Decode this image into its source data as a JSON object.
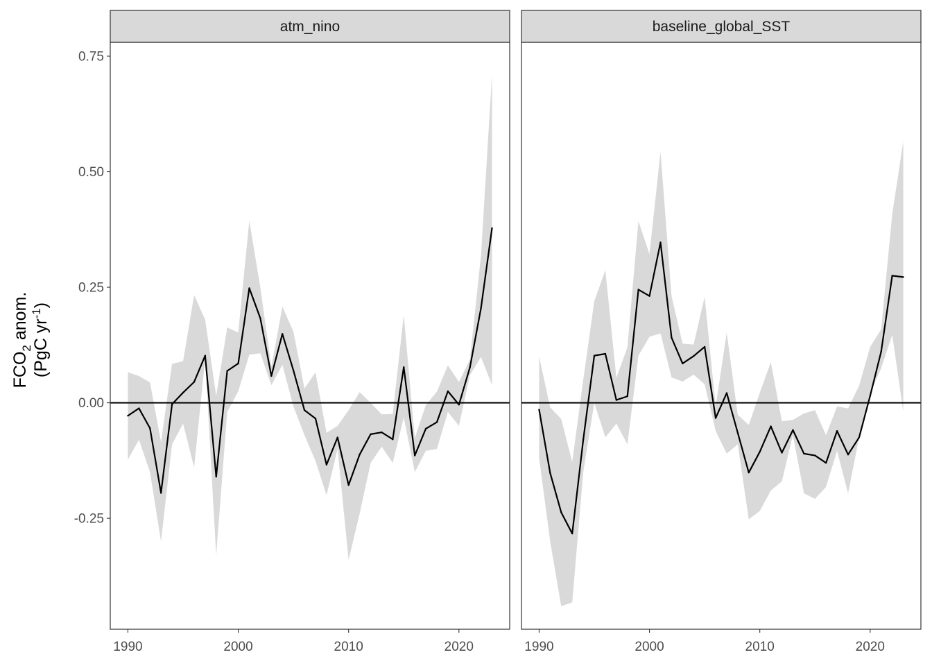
{
  "chart_data": {
    "type": "line",
    "ylabel": {
      "line1": {
        "main": "FCO",
        "sub": "2",
        "rest": " anom."
      },
      "line2": {
        "pre": "(PgC yr",
        "sup": "-1",
        "post": ")"
      }
    },
    "xlim": [
      1988.4,
      2024.6
    ],
    "ylim": [
      -0.49,
      0.78
    ],
    "x_ticks": [
      1990,
      2000,
      2010,
      2020
    ],
    "x_tick_labels": [
      "1990",
      "2000",
      "2010",
      "2020"
    ],
    "y_ticks": [
      -0.25,
      0,
      0.25,
      0.5,
      0.75
    ],
    "y_tick_labels": [
      "-0.25",
      "0.00",
      "0.25",
      "0.50",
      "0.75"
    ],
    "hline": 0,
    "grid": false,
    "colors": {
      "line": "#000000",
      "ribbon": "#d9d9d9",
      "strip": "#d9d9d9",
      "frame": "#333333"
    },
    "panels": [
      {
        "title": "atm_nino",
        "x": [
          1990,
          1991,
          1992,
          1993,
          1994,
          1995,
          1996,
          1997,
          1998,
          1999,
          2000,
          2001,
          2002,
          2003,
          2004,
          2005,
          2006,
          2007,
          2008,
          2009,
          2010,
          2011,
          2012,
          2013,
          2014,
          2015,
          2016,
          2017,
          2018,
          2019,
          2020,
          2021,
          2022,
          2023
        ],
        "y": [
          -0.028,
          -0.012,
          -0.055,
          -0.195,
          -0.003,
          0.022,
          0.045,
          0.102,
          -0.16,
          0.069,
          0.085,
          0.248,
          0.183,
          0.058,
          0.149,
          0.07,
          -0.016,
          -0.034,
          -0.134,
          -0.075,
          -0.178,
          -0.112,
          -0.068,
          -0.064,
          -0.079,
          0.077,
          -0.114,
          -0.056,
          -0.042,
          0.025,
          -0.004,
          0.077,
          0.205,
          0.378
        ],
        "ymin": [
          -0.123,
          -0.08,
          -0.15,
          -0.3,
          -0.09,
          -0.045,
          -0.14,
          0.095,
          -0.33,
          -0.02,
          0.025,
          0.104,
          0.107,
          0.038,
          0.082,
          -0.008,
          -0.07,
          -0.126,
          -0.2,
          -0.1,
          -0.34,
          -0.24,
          -0.13,
          -0.095,
          -0.13,
          -0.032,
          -0.15,
          -0.104,
          -0.1,
          -0.02,
          -0.05,
          0.06,
          0.099,
          0.038
        ],
        "ymax": [
          0.066,
          0.058,
          0.044,
          -0.085,
          0.084,
          0.09,
          0.233,
          0.18,
          0.015,
          0.163,
          0.152,
          0.394,
          0.25,
          0.078,
          0.208,
          0.154,
          0.031,
          0.066,
          -0.065,
          -0.05,
          -0.016,
          0.023,
          0.0,
          -0.025,
          -0.024,
          0.19,
          -0.076,
          -0.005,
          0.024,
          0.081,
          0.045,
          0.094,
          0.319,
          0.711
        ]
      },
      {
        "title": "baseline_global_SST",
        "x": [
          1990,
          1991,
          1992,
          1993,
          1994,
          1995,
          1996,
          1997,
          1998,
          1999,
          2000,
          2001,
          2002,
          2003,
          2004,
          2005,
          2006,
          2007,
          2008,
          2009,
          2010,
          2011,
          2012,
          2013,
          2014,
          2015,
          2016,
          2017,
          2018,
          2019,
          2020,
          2021,
          2022,
          2023
        ],
        "y": [
          -0.015,
          -0.152,
          -0.237,
          -0.283,
          -0.08,
          0.102,
          0.106,
          0.006,
          0.014,
          0.245,
          0.231,
          0.347,
          0.141,
          0.085,
          0.101,
          0.121,
          -0.033,
          0.021,
          -0.065,
          -0.151,
          -0.106,
          -0.051,
          -0.108,
          -0.059,
          -0.11,
          -0.114,
          -0.13,
          -0.061,
          -0.112,
          -0.075,
          0.015,
          0.111,
          0.275,
          0.272
        ],
        "ymin": [
          -0.12,
          -0.3,
          -0.44,
          -0.432,
          -0.15,
          0.0,
          -0.075,
          -0.045,
          -0.09,
          0.102,
          0.143,
          0.15,
          0.055,
          0.046,
          0.061,
          0.04,
          -0.061,
          -0.11,
          -0.09,
          -0.252,
          -0.234,
          -0.19,
          -0.17,
          -0.07,
          -0.196,
          -0.208,
          -0.182,
          -0.104,
          -0.196,
          -0.075,
          0.02,
          0.075,
          0.147,
          -0.018
        ],
        "ymax": [
          0.1,
          -0.01,
          -0.035,
          -0.128,
          0.05,
          0.22,
          0.287,
          0.054,
          0.12,
          0.393,
          0.322,
          0.543,
          0.231,
          0.128,
          0.126,
          0.229,
          -0.008,
          0.152,
          -0.026,
          -0.048,
          0.022,
          0.088,
          -0.04,
          -0.037,
          -0.023,
          -0.016,
          -0.07,
          -0.008,
          -0.012,
          0.037,
          0.121,
          0.159,
          0.408,
          0.565
        ]
      }
    ]
  }
}
